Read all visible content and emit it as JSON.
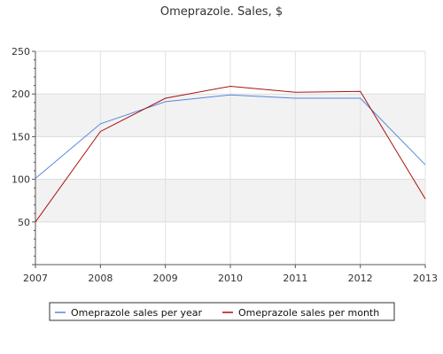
{
  "chart_data": {
    "type": "line",
    "title": "Omeprazole. Sales, $",
    "xlabel": "",
    "ylabel": "",
    "x": [
      "2007",
      "2008",
      "2009",
      "2010",
      "2011",
      "2012",
      "2013"
    ],
    "ylim": [
      0,
      250
    ],
    "yticks": [
      "50",
      "100",
      "150",
      "200",
      "250"
    ],
    "grid": "horizontal bands",
    "legend_position": "bottom",
    "series": [
      {
        "name": "Omeprazole sales per year",
        "color": "#5588dd",
        "values": [
          101,
          165,
          191,
          199,
          195,
          195,
          117
        ]
      },
      {
        "name": "Omeprazole sales per month",
        "color": "#aa1111",
        "values": [
          50,
          156,
          195,
          209,
          202,
          203,
          77
        ]
      }
    ]
  }
}
